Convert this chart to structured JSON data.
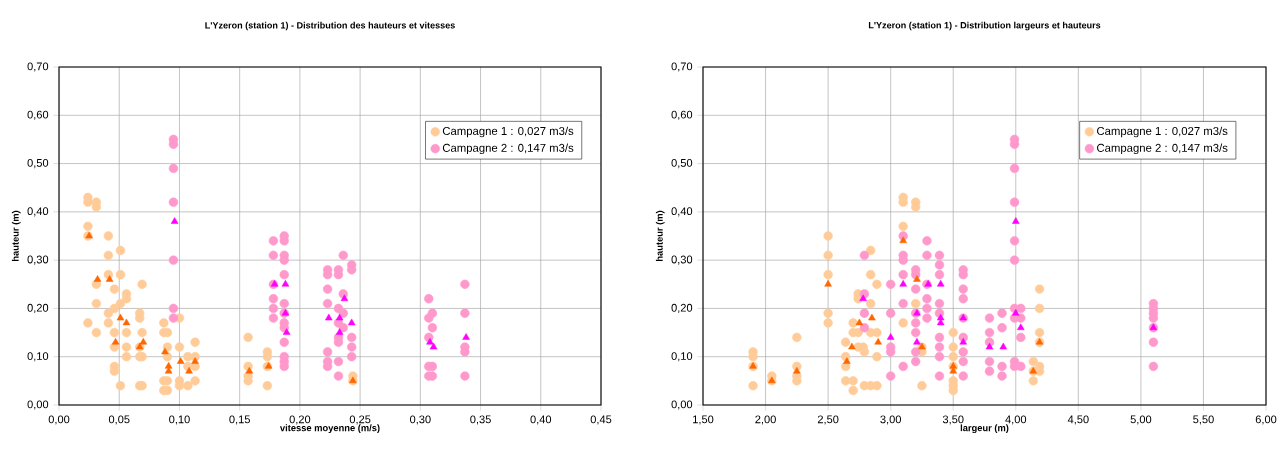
{
  "chart_data": [
    {
      "type": "scatter",
      "title": "L'Yzeron (station 1) - Distribution des hauteurs et vitesses",
      "xlabel": "vitesse moyenne (m/s)",
      "ylabel": "hauteur (m)",
      "grid": true,
      "legend": "top right",
      "xlim": [
        0,
        0.45
      ],
      "ylim": [
        0,
        0.7
      ],
      "xticks": [
        {
          "value": 0,
          "label": "0,00"
        },
        {
          "value": 0.05,
          "label": "0,05"
        },
        {
          "value": 0.1,
          "label": "0,10"
        },
        {
          "value": 0.15,
          "label": "0,15"
        },
        {
          "value": 0.2,
          "label": "0,20"
        },
        {
          "value": 0.25,
          "label": "0,25"
        },
        {
          "value": 0.3,
          "label": "0,30"
        },
        {
          "value": 0.35,
          "label": "0,35"
        },
        {
          "value": 0.4,
          "label": "0,40"
        },
        {
          "value": 0.45,
          "label": "0,45"
        }
      ],
      "yticks": [
        {
          "value": 0,
          "label": "0,00"
        },
        {
          "value": 0.1,
          "label": "0,10"
        },
        {
          "value": 0.2,
          "label": "0,20"
        },
        {
          "value": 0.3,
          "label": "0,30"
        },
        {
          "value": 0.4,
          "label": "0,40"
        },
        {
          "value": 0.5,
          "label": "0,50"
        },
        {
          "value": 0.6,
          "label": "0,60"
        },
        {
          "value": 0.7,
          "label": "0,70"
        }
      ],
      "series": [
        {
          "name": "Campagne 1 : 0,027 m3/s",
          "color": "#ffcc99",
          "marker": "circle",
          "x": [
            0.024,
            0.024,
            0.031,
            0.031,
            0.024,
            0.024,
            0.031,
            0.031,
            0.024,
            0.031,
            0.041,
            0.041,
            0.041,
            0.046,
            0.041,
            0.041,
            0.046,
            0.051,
            0.051,
            0.051,
            0.056,
            0.056,
            0.046,
            0.056,
            0.046,
            0.056,
            0.056,
            0.046,
            0.046,
            0.051,
            0.067,
            0.067,
            0.069,
            0.069,
            0.067,
            0.067,
            0.069,
            0.067,
            0.069,
            0.087,
            0.087,
            0.09,
            0.09,
            0.09,
            0.087,
            0.087,
            0.09,
            0.09,
            0.1,
            0.1,
            0.1,
            0.1,
            0.107,
            0.107,
            0.107,
            0.113,
            0.113,
            0.113,
            0.113,
            0.157,
            0.157,
            0.157,
            0.157,
            0.173,
            0.173,
            0.173,
            0.173,
            0.244,
            0.244
          ],
          "values": [
            0.43,
            0.42,
            0.42,
            0.41,
            0.37,
            0.35,
            0.25,
            0.21,
            0.17,
            0.15,
            0.35,
            0.31,
            0.27,
            0.24,
            0.19,
            0.17,
            0.2,
            0.21,
            0.32,
            0.27,
            0.23,
            0.22,
            0.15,
            0.15,
            0.12,
            0.12,
            0.1,
            0.08,
            0.07,
            0.04,
            0.19,
            0.18,
            0.25,
            0.15,
            0.12,
            0.1,
            0.1,
            0.04,
            0.04,
            0.17,
            0.15,
            0.15,
            0.12,
            0.1,
            0.05,
            0.03,
            0.03,
            0.05,
            0.18,
            0.12,
            0.05,
            0.04,
            0.1,
            0.08,
            0.04,
            0.13,
            0.1,
            0.08,
            0.05,
            0.14,
            0.08,
            0.06,
            0.05,
            0.11,
            0.1,
            0.08,
            0.04,
            0.06,
            0.05
          ]
        },
        {
          "name": "Campagne 2 : 0,147 m3/s",
          "color": "#ff99cc",
          "marker": "circle",
          "x": [
            0.095,
            0.095,
            0.095,
            0.095,
            0.095,
            0.095,
            0.095,
            0.178,
            0.178,
            0.178,
            0.178,
            0.178,
            0.178,
            0.187,
            0.187,
            0.187,
            0.187,
            0.187,
            0.187,
            0.187,
            0.187,
            0.187,
            0.187,
            0.187,
            0.187,
            0.187,
            0.223,
            0.223,
            0.232,
            0.232,
            0.236,
            0.243,
            0.243,
            0.223,
            0.223,
            0.236,
            0.232,
            0.236,
            0.232,
            0.236,
            0.232,
            0.232,
            0.243,
            0.243,
            0.243,
            0.223,
            0.223,
            0.223,
            0.232,
            0.232,
            0.307,
            0.31,
            0.307,
            0.31,
            0.307,
            0.307,
            0.31,
            0.307,
            0.31,
            0.337,
            0.337,
            0.337,
            0.337,
            0.337
          ],
          "values": [
            0.55,
            0.54,
            0.49,
            0.42,
            0.3,
            0.2,
            0.18,
            0.34,
            0.31,
            0.25,
            0.22,
            0.2,
            0.18,
            0.35,
            0.34,
            0.31,
            0.3,
            0.27,
            0.21,
            0.19,
            0.17,
            0.16,
            0.13,
            0.1,
            0.09,
            0.08,
            0.28,
            0.27,
            0.28,
            0.27,
            0.31,
            0.29,
            0.28,
            0.24,
            0.21,
            0.23,
            0.2,
            0.19,
            0.17,
            0.16,
            0.14,
            0.13,
            0.14,
            0.12,
            0.1,
            0.11,
            0.09,
            0.08,
            0.09,
            0.06,
            0.22,
            0.19,
            0.18,
            0.16,
            0.14,
            0.08,
            0.08,
            0.06,
            0.06,
            0.25,
            0.19,
            0.12,
            0.11,
            0.06
          ]
        },
        {
          "color": "#ff6600",
          "marker": "triangle",
          "x": [
            0.025,
            0.032,
            0.042,
            0.047,
            0.051,
            0.056,
            0.067,
            0.07,
            0.088,
            0.091,
            0.091,
            0.101,
            0.108,
            0.113,
            0.158,
            0.174,
            0.244
          ],
          "values": [
            0.35,
            0.26,
            0.26,
            0.13,
            0.18,
            0.17,
            0.12,
            0.13,
            0.11,
            0.08,
            0.07,
            0.09,
            0.07,
            0.09,
            0.07,
            0.08,
            0.05
          ]
        },
        {
          "color": "#ff00ff",
          "marker": "triangle",
          "x": [
            0.096,
            0.179,
            0.188,
            0.188,
            0.189,
            0.224,
            0.233,
            0.237,
            0.233,
            0.243,
            0.308,
            0.311,
            0.338
          ],
          "values": [
            0.38,
            0.25,
            0.25,
            0.19,
            0.15,
            0.18,
            0.18,
            0.22,
            0.15,
            0.17,
            0.13,
            0.12,
            0.14
          ]
        }
      ]
    },
    {
      "type": "scatter",
      "title": "L'Yzeron (station 1) - Distribution largeurs et hauteurs",
      "xlabel": "largeur (m)",
      "ylabel": "hauteur (m)",
      "grid": true,
      "legend": "top right",
      "xlim": [
        1.5,
        6
      ],
      "ylim": [
        0,
        0.7
      ],
      "xticks": [
        {
          "value": 1.5,
          "label": "1,50"
        },
        {
          "value": 2,
          "label": "2,00"
        },
        {
          "value": 2.5,
          "label": "2,50"
        },
        {
          "value": 3,
          "label": "3,00"
        },
        {
          "value": 3.5,
          "label": "3,50"
        },
        {
          "value": 4,
          "label": "4,00"
        },
        {
          "value": 4.5,
          "label": "4,50"
        },
        {
          "value": 5,
          "label": "5,00"
        },
        {
          "value": 5.5,
          "label": "5,50"
        },
        {
          "value": 6,
          "label": "6,00"
        }
      ],
      "yticks": [
        {
          "value": 0,
          "label": "0,00"
        },
        {
          "value": 0.1,
          "label": "0,10"
        },
        {
          "value": 0.2,
          "label": "0,20"
        },
        {
          "value": 0.3,
          "label": "0,30"
        },
        {
          "value": 0.4,
          "label": "0,40"
        },
        {
          "value": 0.5,
          "label": "0,50"
        },
        {
          "value": 0.6,
          "label": "0,60"
        },
        {
          "value": 0.7,
          "label": "0,70"
        }
      ],
      "series": [
        {
          "name": "Campagne 1 : 0,027 m3/s",
          "color": "#ffcc99",
          "marker": "circle",
          "x": [
            1.9,
            1.9,
            1.9,
            1.9,
            2.05,
            2.05,
            2.25,
            2.25,
            2.25,
            2.25,
            2.5,
            2.5,
            2.5,
            2.5,
            2.5,
            2.64,
            2.64,
            2.64,
            2.64,
            2.7,
            2.7,
            2.7,
            2.7,
            2.74,
            2.74,
            2.74,
            2.74,
            2.78,
            2.79,
            2.79,
            2.84,
            2.84,
            2.84,
            2.84,
            2.84,
            2.89,
            2.89,
            2.89,
            2.89,
            3.1,
            3.1,
            3.1,
            3.1,
            3.2,
            3.2,
            3.2,
            3.25,
            3.25,
            3.25,
            3.5,
            3.5,
            3.5,
            3.5,
            3.5,
            3.5,
            3.5,
            4.14,
            4.14,
            4.14,
            4.19,
            4.19,
            4.19,
            4.19,
            4.19,
            4.19
          ],
          "values": [
            0.11,
            0.1,
            0.08,
            0.04,
            0.06,
            0.05,
            0.14,
            0.08,
            0.06,
            0.05,
            0.35,
            0.31,
            0.27,
            0.19,
            0.17,
            0.13,
            0.1,
            0.08,
            0.05,
            0.17,
            0.15,
            0.05,
            0.03,
            0.23,
            0.22,
            0.15,
            0.12,
            0.12,
            0.11,
            0.04,
            0.32,
            0.27,
            0.21,
            0.15,
            0.04,
            0.25,
            0.15,
            0.1,
            0.04,
            0.43,
            0.42,
            0.37,
            0.17,
            0.42,
            0.41,
            0.21,
            0.04,
            0.12,
            0.11,
            0.15,
            0.12,
            0.1,
            0.08,
            0.05,
            0.04,
            0.03,
            0.09,
            0.07,
            0.05,
            0.24,
            0.2,
            0.15,
            0.13,
            0.08,
            0.07
          ]
        },
        {
          "name": "Campagne 2 : 0,147 m3/s",
          "color": "#ff99cc",
          "marker": "circle",
          "x": [
            2.79,
            2.79,
            2.79,
            2.79,
            3.0,
            3.0,
            3.0,
            3.0,
            3.0,
            3.1,
            3.1,
            3.1,
            3.1,
            3.1,
            3.1,
            3.2,
            3.2,
            3.2,
            3.2,
            3.2,
            3.2,
            3.2,
            3.2,
            3.29,
            3.29,
            3.29,
            3.29,
            3.29,
            3.29,
            3.39,
            3.39,
            3.39,
            3.39,
            3.39,
            3.39,
            3.39,
            3.39,
            3.39,
            3.58,
            3.58,
            3.58,
            3.58,
            3.58,
            3.58,
            3.58,
            3.58,
            3.58,
            3.79,
            3.79,
            3.79,
            3.79,
            3.79,
            3.89,
            3.89,
            3.89,
            3.89,
            3.99,
            3.99,
            3.99,
            3.99,
            3.99,
            3.99,
            3.99,
            3.99,
            3.99,
            3.99,
            4.04,
            4.04,
            4.04,
            4.04,
            5.1,
            5.1,
            5.1,
            5.1,
            5.1,
            5.1,
            5.1
          ],
          "values": [
            0.31,
            0.23,
            0.19,
            0.16,
            0.25,
            0.19,
            0.12,
            0.11,
            0.06,
            0.35,
            0.31,
            0.3,
            0.27,
            0.21,
            0.08,
            0.28,
            0.27,
            0.24,
            0.19,
            0.17,
            0.15,
            0.11,
            0.09,
            0.34,
            0.31,
            0.25,
            0.22,
            0.2,
            0.18,
            0.31,
            0.29,
            0.27,
            0.21,
            0.19,
            0.14,
            0.12,
            0.1,
            0.06,
            0.28,
            0.27,
            0.24,
            0.22,
            0.18,
            0.14,
            0.11,
            0.09,
            0.06,
            0.18,
            0.15,
            0.13,
            0.09,
            0.07,
            0.19,
            0.16,
            0.08,
            0.06,
            0.55,
            0.54,
            0.49,
            0.42,
            0.34,
            0.3,
            0.2,
            0.18,
            0.09,
            0.08,
            0.2,
            0.18,
            0.14,
            0.08,
            0.21,
            0.2,
            0.19,
            0.18,
            0.16,
            0.13,
            0.08
          ]
        },
        {
          "color": "#ff6600",
          "marker": "triangle",
          "x": [
            1.9,
            2.05,
            2.25,
            2.5,
            2.65,
            2.69,
            2.75,
            2.85,
            2.9,
            3.1,
            3.21,
            3.25,
            3.5,
            3.5,
            4.14,
            4.19
          ],
          "values": [
            0.08,
            0.05,
            0.07,
            0.25,
            0.09,
            0.12,
            0.17,
            0.18,
            0.13,
            0.34,
            0.26,
            0.12,
            0.08,
            0.07,
            0.07,
            0.13
          ]
        },
        {
          "color": "#ff00ff",
          "marker": "triangle",
          "x": [
            2.78,
            3.0,
            3.1,
            3.21,
            3.21,
            3.3,
            3.4,
            3.4,
            3.4,
            3.58,
            3.58,
            3.79,
            3.9,
            4.0,
            4.0,
            4.04,
            5.1
          ],
          "values": [
            0.22,
            0.14,
            0.25,
            0.19,
            0.13,
            0.25,
            0.25,
            0.18,
            0.17,
            0.18,
            0.13,
            0.12,
            0.12,
            0.38,
            0.19,
            0.16,
            0.16
          ]
        }
      ]
    }
  ]
}
